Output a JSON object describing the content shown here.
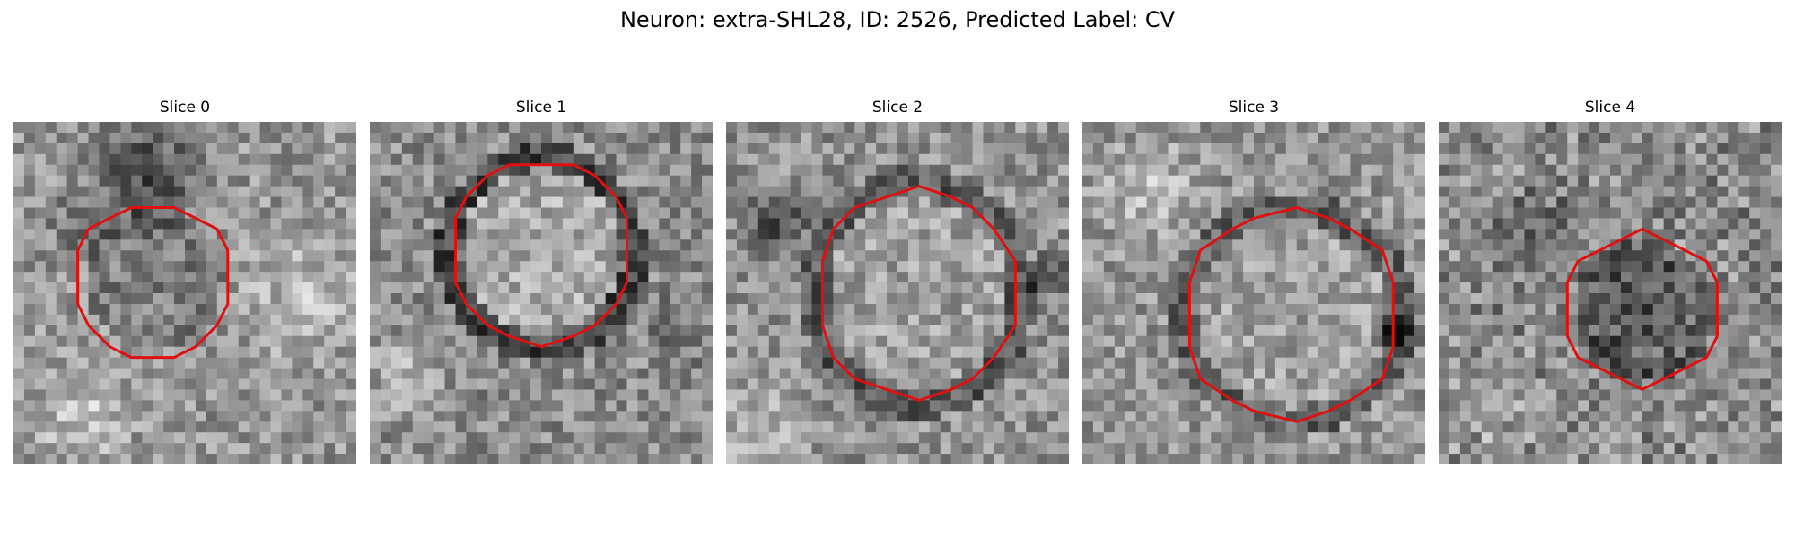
{
  "figure": {
    "title": "Neuron: extra-SHL28, ID: 2526, Predicted Label: CV",
    "contour_color": "#e01010"
  },
  "panels": [
    {
      "title": "Slice 0"
    },
    {
      "title": "Slice 1"
    },
    {
      "title": "Slice 2"
    },
    {
      "title": "Slice 3"
    },
    {
      "title": "Slice 4"
    }
  ]
}
